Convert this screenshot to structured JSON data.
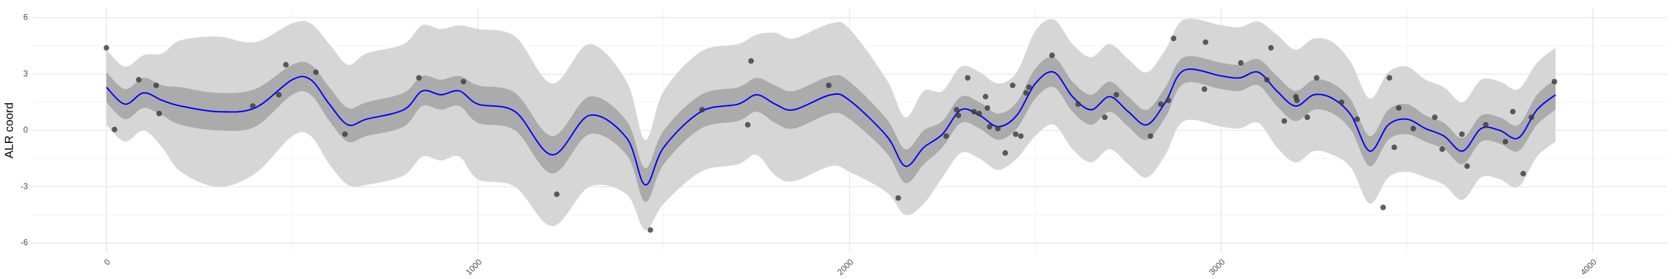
{
  "chart_data": {
    "type": "line",
    "y_label": "ALR coord",
    "xlim": [
      -200,
      4200
    ],
    "ylim": [
      -6.5,
      6.5
    ],
    "xticks": [
      0,
      1000,
      2000,
      3000,
      4000
    ],
    "yticks": [
      -6,
      -3,
      0,
      3,
      6
    ],
    "grid": true,
    "x": [
      0,
      50,
      100,
      150,
      200,
      300,
      400,
      500,
      550,
      600,
      650,
      700,
      800,
      850,
      900,
      950,
      1000,
      1100,
      1200,
      1300,
      1400,
      1450,
      1500,
      1600,
      1700,
      1750,
      1800,
      1850,
      1950,
      2000,
      2100,
      2150,
      2200,
      2250,
      2300,
      2350,
      2400,
      2450,
      2500,
      2550,
      2600,
      2650,
      2700,
      2750,
      2800,
      2850,
      2900,
      3000,
      3050,
      3100,
      3150,
      3200,
      3250,
      3300,
      3350,
      3400,
      3450,
      3500,
      3550,
      3600,
      3650,
      3700,
      3750,
      3800,
      3850,
      3900
    ],
    "bands": [
      {
        "color": "#d6d6d6",
        "lower": [
          0.3,
          -0.6,
          0,
          -0.9,
          -2.2,
          -3,
          -2.3,
          -0.3,
          -0.3,
          -1.8,
          -2.9,
          -2.9,
          -2.4,
          -1.4,
          -1.6,
          -1.4,
          -2.6,
          -3,
          -5.1,
          -3,
          -3.4,
          -5.3,
          -3.9,
          -2.2,
          -1.8,
          -1.3,
          -2.4,
          -2.7,
          -1.9,
          -2.2,
          -3.3,
          -4.5,
          -3.9,
          -2.5,
          -1.2,
          -1.5,
          -2.1,
          -1.5,
          -0.3,
          0.3,
          -1.0,
          -1.7,
          -1.0,
          -1.8,
          -2.5,
          -1.3,
          0.5,
          0.2,
          0.1,
          0.4,
          -0.9,
          -1.7,
          -1.1,
          -1.3,
          -2.0,
          -3.9,
          -2.5,
          -2.2,
          -2.5,
          -2.9,
          -3.7,
          -2.5,
          -2.6,
          -3.0,
          -1.4,
          -0.6
        ],
        "upper": [
          4.3,
          3.4,
          4.0,
          4.1,
          4.8,
          5,
          4.7,
          5.7,
          5.7,
          4.6,
          3.5,
          4.1,
          4.6,
          5.6,
          5.4,
          5.6,
          5.4,
          5,
          2.5,
          4.6,
          2.6,
          -0.5,
          2.1,
          4.2,
          4.6,
          5.1,
          5.2,
          4.9,
          5.7,
          5.4,
          2.7,
          0.7,
          2.1,
          2.1,
          3.4,
          3.1,
          2.5,
          3.1,
          5.3,
          5.9,
          4.6,
          3.9,
          4.6,
          3.8,
          3.1,
          4.3,
          5.9,
          5.6,
          5.5,
          5.8,
          5.1,
          4.3,
          4.9,
          4.7,
          3.6,
          1.7,
          3.1,
          3.4,
          2.7,
          2.3,
          1.5,
          2.7,
          2.6,
          2.2,
          3.6,
          4.4
        ]
      },
      {
        "color": "#ababab",
        "lower": [
          1.5,
          0.6,
          1.2,
          0.8,
          0.3,
          0,
          0.2,
          1.9,
          1.9,
          0.5,
          -0.6,
          -0.3,
          0.2,
          1.3,
          1.1,
          1.3,
          0.4,
          0,
          -2.3,
          -0.2,
          -1.3,
          -3.8,
          -1.8,
          0.1,
          0.5,
          1.0,
          0.4,
          0.1,
          0.9,
          0.6,
          -1.2,
          -2.8,
          -1.8,
          -0.9,
          0.4,
          0.1,
          -0.5,
          0.1,
          1.7,
          2.3,
          1.0,
          0.3,
          1.0,
          0.2,
          -0.5,
          0.7,
          2.5,
          2.2,
          2.1,
          2.4,
          1.3,
          0.5,
          1.1,
          0.9,
          0,
          -1.9,
          -0.5,
          -0.2,
          -0.6,
          -1.0,
          -1.8,
          -0.6,
          -0.7,
          -1.1,
          0.3,
          1.1
        ],
        "upper": [
          3.1,
          2.2,
          2.8,
          2.4,
          2.3,
          2,
          2.2,
          3.5,
          3.5,
          2.3,
          1.2,
          1.5,
          2.0,
          2.9,
          2.7,
          2.9,
          2.4,
          2,
          -0.3,
          1.8,
          0.5,
          -2.0,
          0,
          1.9,
          2.3,
          2.8,
          2.4,
          2.1,
          2.9,
          2.6,
          0.6,
          -1.0,
          0,
          0.5,
          1.8,
          1.5,
          0.9,
          1.5,
          3.3,
          3.9,
          2.6,
          1.9,
          2.6,
          1.8,
          1.1,
          2.3,
          3.9,
          3.6,
          3.5,
          3.8,
          2.9,
          2.1,
          2.7,
          2.5,
          1.6,
          -0.3,
          1.1,
          1.4,
          0.8,
          0.4,
          -0.4,
          0.8,
          0.7,
          0.3,
          1.9,
          2.7
        ]
      }
    ],
    "series": [
      {
        "color": "#0000ff",
        "values": [
          2.3,
          1.4,
          2.0,
          1.6,
          1.3,
          1.0,
          1.2,
          2.7,
          2.7,
          1.4,
          0.3,
          0.6,
          1.1,
          2.1,
          1.9,
          2.1,
          1.4,
          1.0,
          -1.3,
          0.8,
          -0.4,
          -2.9,
          -0.9,
          1.0,
          1.4,
          1.9,
          1.4,
          1.1,
          1.9,
          1.6,
          -0.3,
          -1.9,
          -0.9,
          -0.2,
          1.1,
          0.8,
          0.2,
          0.8,
          2.5,
          3.1,
          1.8,
          1.1,
          1.8,
          1.0,
          0.3,
          1.5,
          3.2,
          2.9,
          2.8,
          3.1,
          2.1,
          1.3,
          1.9,
          1.7,
          0.8,
          -1.1,
          0.3,
          0.6,
          0.1,
          -0.3,
          -1.1,
          0.1,
          0.0,
          -0.4,
          1.1,
          1.9
        ]
      }
    ],
    "points": {
      "color": "#3a3a3a",
      "x": [
        0,
        22,
        87,
        134,
        142,
        394,
        464,
        483,
        564,
        642,
        841,
        961,
        1212,
        1464,
        1603,
        1726,
        1735,
        1944,
        2131,
        2260,
        2288,
        2293,
        2318,
        2335,
        2349,
        2366,
        2371,
        2377,
        2399,
        2419,
        2439,
        2447,
        2461,
        2475,
        2483,
        2545,
        2615,
        2687,
        2718,
        2810,
        2838,
        2858,
        2872,
        2955,
        2958,
        3053,
        3123,
        3134,
        3170,
        3201,
        3204,
        3232,
        3257,
        3324,
        3366,
        3436,
        3453,
        3466,
        3478,
        3517,
        3575,
        3595,
        3648,
        3662,
        3712,
        3765,
        3785,
        3813,
        3835,
        3897
      ],
      "y": [
        4.4,
        0.05,
        2.7,
        2.4,
        0.9,
        1.3,
        1.9,
        3.5,
        3.1,
        -0.2,
        2.8,
        2.6,
        -3.4,
        -5.3,
        1.1,
        0.3,
        3.7,
        2.4,
        -3.6,
        -0.3,
        1.1,
        0.8,
        2.8,
        1.0,
        0.9,
        1.8,
        1.2,
        0.2,
        0.1,
        -1.2,
        2.4,
        -0.2,
        -0.3,
        2.0,
        2.3,
        4.0,
        1.4,
        0.7,
        1.9,
        -0.3,
        1.4,
        1.6,
        4.9,
        2.2,
        4.7,
        3.6,
        2.7,
        4.4,
        0.5,
        1.8,
        1.6,
        0.7,
        2.8,
        1.5,
        0.6,
        -4.1,
        2.8,
        -0.9,
        1.2,
        0.1,
        0.7,
        -1.0,
        -0.2,
        -1.9,
        0.3,
        -0.6,
        1.0,
        -2.3,
        0.7,
        2.6
      ]
    }
  }
}
